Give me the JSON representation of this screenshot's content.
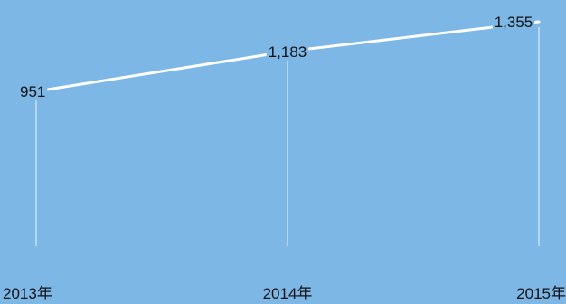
{
  "chart_data": {
    "type": "line",
    "categories": [
      "2013年",
      "2014年",
      "2015年"
    ],
    "values": [
      951,
      1183,
      1355
    ],
    "data_labels": [
      "951",
      "1,183",
      "1,355"
    ],
    "title": "",
    "xlabel": "",
    "ylabel": "",
    "grid": false,
    "legend": "none",
    "colors": {
      "background": "#7cb7e6",
      "line": "#ffffff",
      "drop_line": "#e8f3fc",
      "text": "#111111"
    }
  }
}
